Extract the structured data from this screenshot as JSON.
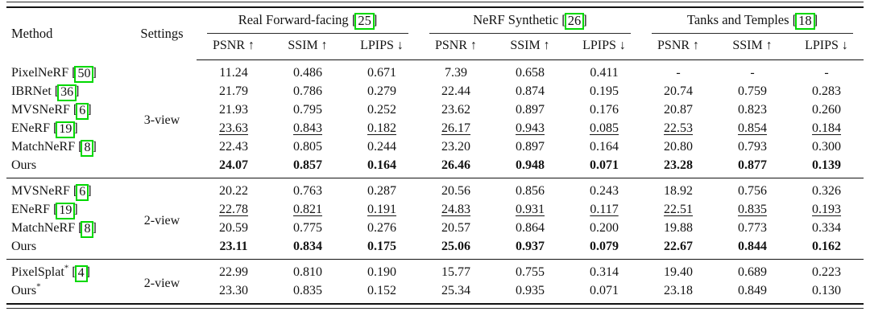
{
  "colors": {
    "cite_box_green": "#00d800",
    "text": "#131313",
    "rule": "#131313"
  },
  "table": {
    "columns": {
      "method": "Method",
      "settings": "Settings"
    },
    "groups": [
      {
        "label": "Real Forward-facing",
        "cite": "25"
      },
      {
        "label": "NeRF Synthetic",
        "cite": "26"
      },
      {
        "label": "Tanks and Temples",
        "cite": "18"
      }
    ],
    "metrics": [
      "PSNR ↑",
      "SSIM ↑",
      "LPIPS ↓"
    ],
    "sections": [
      {
        "setting": "3-view",
        "rows": [
          {
            "method": "PixelNeRF",
            "cite": "50",
            "style": "normal",
            "values": [
              "11.24",
              "0.486",
              "0.671",
              "7.39",
              "0.658",
              "0.411",
              "-",
              "-",
              "-"
            ]
          },
          {
            "method": "IBRNet",
            "cite": "36",
            "style": "normal",
            "values": [
              "21.79",
              "0.786",
              "0.279",
              "22.44",
              "0.874",
              "0.195",
              "20.74",
              "0.759",
              "0.283"
            ]
          },
          {
            "method": "MVSNeRF",
            "cite": "6",
            "style": "normal",
            "values": [
              "21.93",
              "0.795",
              "0.252",
              "23.62",
              "0.897",
              "0.176",
              "20.87",
              "0.823",
              "0.260"
            ]
          },
          {
            "method": "ENeRF",
            "cite": "19",
            "style": "underline",
            "values": [
              "23.63",
              "0.843",
              "0.182",
              "26.17",
              "0.943",
              "0.085",
              "22.53",
              "0.854",
              "0.184"
            ]
          },
          {
            "method": "MatchNeRF",
            "cite": "8",
            "style": "normal",
            "values": [
              "22.43",
              "0.805",
              "0.244",
              "23.20",
              "0.897",
              "0.164",
              "20.80",
              "0.793",
              "0.300"
            ]
          },
          {
            "method": "Ours",
            "style": "bold",
            "values": [
              "24.07",
              "0.857",
              "0.164",
              "26.46",
              "0.948",
              "0.071",
              "23.28",
              "0.877",
              "0.139"
            ]
          }
        ]
      },
      {
        "setting": "2-view",
        "rows": [
          {
            "method": "MVSNeRF",
            "cite": "6",
            "style": "normal",
            "values": [
              "20.22",
              "0.763",
              "0.287",
              "20.56",
              "0.856",
              "0.243",
              "18.92",
              "0.756",
              "0.326"
            ]
          },
          {
            "method": "ENeRF",
            "cite": "19",
            "style": "underline",
            "values": [
              "22.78",
              "0.821",
              "0.191",
              "24.83",
              "0.931",
              "0.117",
              "22.51",
              "0.835",
              "0.193"
            ]
          },
          {
            "method": "MatchNeRF",
            "cite": "8",
            "style": "normal",
            "values": [
              "20.59",
              "0.775",
              "0.276",
              "20.57",
              "0.864",
              "0.200",
              "19.88",
              "0.773",
              "0.334"
            ]
          },
          {
            "method": "Ours",
            "style": "bold",
            "values": [
              "23.11",
              "0.834",
              "0.175",
              "25.06",
              "0.937",
              "0.079",
              "22.67",
              "0.844",
              "0.162"
            ]
          }
        ]
      },
      {
        "setting": "2-view",
        "rows": [
          {
            "method": "PixelSplat",
            "sup": "*",
            "cite": "4",
            "style": "normal",
            "values": [
              "22.99",
              "0.810",
              "0.190",
              "15.77",
              "0.755",
              "0.314",
              "19.40",
              "0.689",
              "0.223"
            ]
          },
          {
            "method": "Ours",
            "sup": "*",
            "style": "normal",
            "values": [
              "23.30",
              "0.835",
              "0.152",
              "25.34",
              "0.935",
              "0.071",
              "23.18",
              "0.849",
              "0.130"
            ]
          }
        ]
      }
    ]
  }
}
